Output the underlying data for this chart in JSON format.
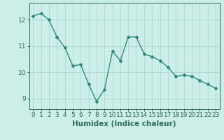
{
  "x": [
    0,
    1,
    2,
    3,
    4,
    5,
    6,
    7,
    8,
    9,
    10,
    11,
    12,
    13,
    14,
    15,
    16,
    17,
    18,
    19,
    20,
    21,
    22,
    23
  ],
  "y": [
    12.15,
    12.25,
    12.0,
    11.35,
    10.95,
    10.25,
    10.3,
    9.55,
    8.9,
    9.35,
    10.8,
    10.45,
    11.35,
    11.35,
    10.7,
    10.6,
    10.45,
    10.2,
    9.85,
    9.9,
    9.85,
    9.7,
    9.55,
    9.4
  ],
  "line_color": "#2e8b7a",
  "marker": "D",
  "marker_size": 2.0,
  "linewidth": 1.0,
  "bg_color": "#cceee8",
  "grid_color": "#aad8d2",
  "xlabel": "Humidex (Indice chaleur)",
  "xlabel_fontsize": 7.5,
  "yticks": [
    9,
    10,
    11,
    12
  ],
  "xticks": [
    0,
    1,
    2,
    3,
    4,
    5,
    6,
    7,
    8,
    9,
    10,
    11,
    12,
    13,
    14,
    15,
    16,
    17,
    18,
    19,
    20,
    21,
    22,
    23
  ],
  "ylim": [
    8.6,
    12.65
  ],
  "xlim": [
    -0.5,
    23.5
  ],
  "tick_fontsize": 6.5,
  "tick_color": "#2e6b5a",
  "spine_color": "#2e6b5a"
}
